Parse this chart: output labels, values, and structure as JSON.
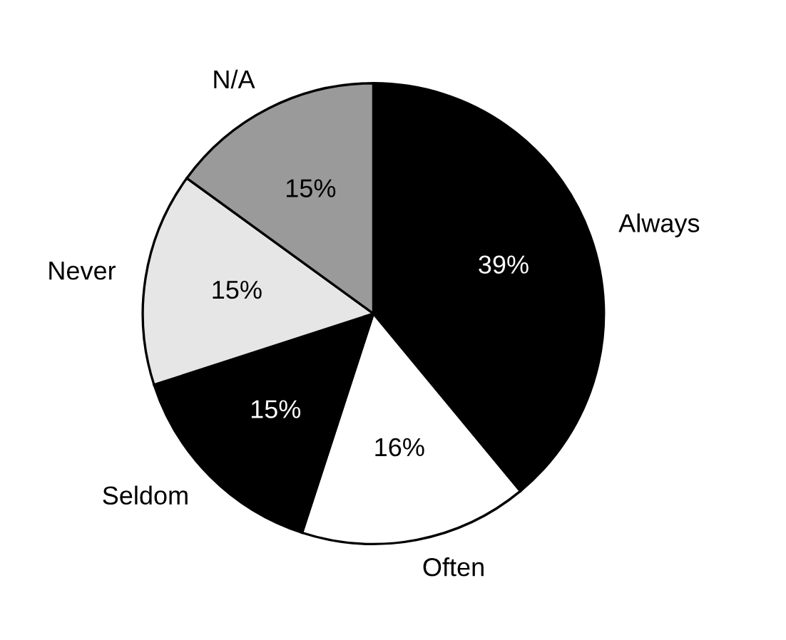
{
  "chart_data": {
    "type": "pie",
    "categories": [
      "Always",
      "Often",
      "Seldom",
      "Never",
      "N/A"
    ],
    "values": [
      39,
      16,
      15,
      15,
      15
    ],
    "value_labels": [
      "39%",
      "16%",
      "15%",
      "15%",
      "15%"
    ],
    "colors": [
      "#000000",
      "#ffffff",
      "#000000",
      "#e6e6e6",
      "#9a9a9a"
    ]
  }
}
